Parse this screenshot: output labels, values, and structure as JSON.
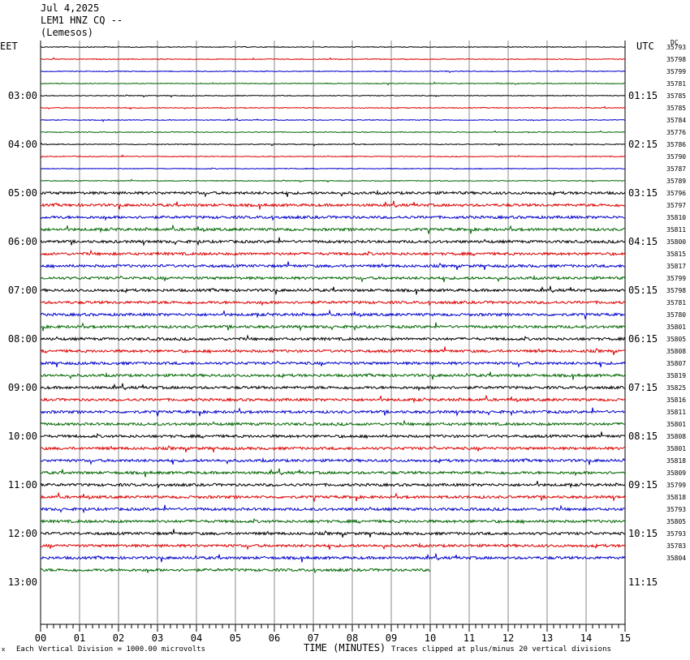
{
  "header": {
    "date": "Jul 4,2025",
    "station": "LEM1 HNZ CQ --",
    "location": "(Lemesos)"
  },
  "left_tz": "EET",
  "right_tz": "UTC",
  "dc_label": "DC",
  "colors": {
    "trace_cycle": [
      "#000000",
      "#dd0000",
      "#0000cc",
      "#006600"
    ],
    "grid": "#000000"
  },
  "chart_data": {
    "type": "line",
    "title": "LEM1 HNZ CQ --",
    "subtitle": "Jul 4,2025",
    "xlabel": "TIME (MINUTES)",
    "x_ticks": [
      "00",
      "01",
      "02",
      "03",
      "04",
      "05",
      "06",
      "07",
      "08",
      "09",
      "10",
      "11",
      "12",
      "13",
      "14",
      "15"
    ],
    "xlim": [
      0,
      15
    ],
    "grid": true,
    "rows_total": 44,
    "last_row_end_minute": 10,
    "left_time_labels": [
      "03:00",
      "04:00",
      "05:00",
      "06:00",
      "07:00",
      "08:00",
      "09:00",
      "10:00",
      "11:00",
      "12:00",
      "13:00"
    ],
    "right_time_labels": [
      "01:15",
      "02:15",
      "03:15",
      "04:15",
      "05:15",
      "06:15",
      "07:15",
      "08:15",
      "09:15",
      "10:15",
      "11:15"
    ],
    "dc_offsets": [
      35793,
      35798,
      35799,
      35781,
      35785,
      35785,
      35784,
      35776,
      35786,
      35790,
      35787,
      35789,
      35796,
      35797,
      35810,
      35811,
      35800,
      35815,
      35817,
      35799,
      35798,
      35781,
      35780,
      35801,
      35805,
      35808,
      35807,
      35819,
      35825,
      35816,
      35811,
      35801,
      35808,
      35801,
      35818,
      35809,
      35799,
      35818,
      35793,
      35805,
      35793,
      35783,
      35804
    ]
  },
  "footer": {
    "scale_note": "Each Vertical Division = 1000.00 microvolts",
    "clip_note": "Traces clipped at plus/minus 20 vertical divisions",
    "mark": "ϰ"
  }
}
